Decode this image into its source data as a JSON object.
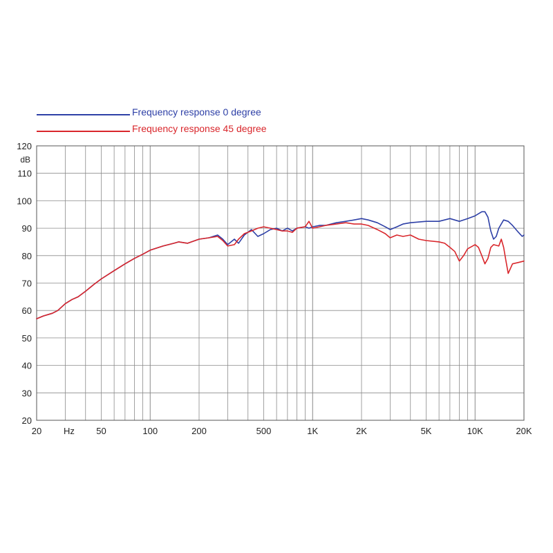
{
  "chart_data": {
    "type": "line",
    "x_scale": "log",
    "xlim": [
      20,
      20000
    ],
    "ylim": [
      20,
      120
    ],
    "y_unit": "dB",
    "x_unit": "Hz",
    "grid": true,
    "legend_position": "top-left",
    "y_ticks": [
      "120",
      "110",
      "100",
      "90",
      "80",
      "70",
      "60",
      "50",
      "40",
      "30",
      "20"
    ],
    "x_ticks": [
      {
        "value": 20,
        "label": "20"
      },
      {
        "value": 50,
        "label": "50"
      },
      {
        "value": 100,
        "label": "100"
      },
      {
        "value": 200,
        "label": "200"
      },
      {
        "value": 500,
        "label": "500"
      },
      {
        "value": 1000,
        "label": "1K"
      },
      {
        "value": 2000,
        "label": "2K"
      },
      {
        "value": 5000,
        "label": "5K"
      },
      {
        "value": 10000,
        "label": "10K"
      },
      {
        "value": 20000,
        "label": "20K"
      }
    ],
    "series": [
      {
        "name": "Frequency response 0 degree",
        "color": "#2d3fa6",
        "points": [
          [
            20,
            57
          ],
          [
            22,
            58
          ],
          [
            25,
            59
          ],
          [
            27,
            60
          ],
          [
            30,
            62.5
          ],
          [
            33,
            64
          ],
          [
            36,
            65
          ],
          [
            40,
            67
          ],
          [
            45,
            69.5
          ],
          [
            50,
            71.5
          ],
          [
            60,
            74.5
          ],
          [
            70,
            77
          ],
          [
            80,
            79
          ],
          [
            90,
            80.5
          ],
          [
            100,
            82
          ],
          [
            120,
            83.5
          ],
          [
            140,
            84.5
          ],
          [
            150,
            85
          ],
          [
            170,
            84.5
          ],
          [
            200,
            86
          ],
          [
            230,
            86.5
          ],
          [
            260,
            87.5
          ],
          [
            280,
            86
          ],
          [
            300,
            84
          ],
          [
            330,
            86
          ],
          [
            350,
            84.5
          ],
          [
            380,
            87.5
          ],
          [
            420,
            89.5
          ],
          [
            460,
            87
          ],
          [
            500,
            88
          ],
          [
            550,
            89.5
          ],
          [
            600,
            90
          ],
          [
            650,
            89
          ],
          [
            700,
            90
          ],
          [
            750,
            89
          ],
          [
            800,
            90
          ],
          [
            900,
            90.5
          ],
          [
            950,
            90
          ],
          [
            1000,
            90.5
          ],
          [
            1100,
            91
          ],
          [
            1200,
            91
          ],
          [
            1400,
            92
          ],
          [
            1600,
            92.5
          ],
          [
            1800,
            93
          ],
          [
            2000,
            93.5
          ],
          [
            2200,
            93
          ],
          [
            2500,
            92
          ],
          [
            2800,
            90.5
          ],
          [
            3000,
            89.5
          ],
          [
            3300,
            90.5
          ],
          [
            3600,
            91.5
          ],
          [
            4000,
            92
          ],
          [
            5000,
            92.5
          ],
          [
            6000,
            92.5
          ],
          [
            7000,
            93.5
          ],
          [
            8000,
            92.5
          ],
          [
            9000,
            93.5
          ],
          [
            10000,
            94.5
          ],
          [
            11000,
            96
          ],
          [
            11500,
            96
          ],
          [
            12000,
            94
          ],
          [
            12500,
            89
          ],
          [
            13000,
            86
          ],
          [
            13500,
            87
          ],
          [
            14000,
            90
          ],
          [
            15000,
            93
          ],
          [
            16000,
            92.5
          ],
          [
            17000,
            91
          ],
          [
            18500,
            88.5
          ],
          [
            19500,
            87
          ],
          [
            20000,
            87.5
          ]
        ]
      },
      {
        "name": "Frequency response 45 degree",
        "color": "#d9262b",
        "points": [
          [
            20,
            57
          ],
          [
            22,
            58
          ],
          [
            25,
            59
          ],
          [
            27,
            60
          ],
          [
            30,
            62.5
          ],
          [
            33,
            64
          ],
          [
            36,
            65
          ],
          [
            40,
            67
          ],
          [
            45,
            69.5
          ],
          [
            50,
            71.5
          ],
          [
            60,
            74.5
          ],
          [
            70,
            77
          ],
          [
            80,
            79
          ],
          [
            90,
            80.5
          ],
          [
            100,
            82
          ],
          [
            120,
            83.5
          ],
          [
            140,
            84.5
          ],
          [
            150,
            85
          ],
          [
            170,
            84.5
          ],
          [
            200,
            86
          ],
          [
            230,
            86.5
          ],
          [
            260,
            87
          ],
          [
            280,
            85.5
          ],
          [
            300,
            83.5
          ],
          [
            330,
            84
          ],
          [
            350,
            86
          ],
          [
            380,
            88
          ],
          [
            420,
            89
          ],
          [
            460,
            90
          ],
          [
            500,
            90.5
          ],
          [
            550,
            90
          ],
          [
            600,
            89.5
          ],
          [
            650,
            89
          ],
          [
            700,
            89
          ],
          [
            750,
            88.5
          ],
          [
            800,
            90
          ],
          [
            900,
            90.5
          ],
          [
            950,
            92.5
          ],
          [
            1000,
            90
          ],
          [
            1100,
            90.5
          ],
          [
            1200,
            91
          ],
          [
            1400,
            91.5
          ],
          [
            1600,
            92
          ],
          [
            1800,
            91.5
          ],
          [
            2000,
            91.5
          ],
          [
            2200,
            91
          ],
          [
            2500,
            89.5
          ],
          [
            2800,
            88
          ],
          [
            3000,
            86.5
          ],
          [
            3300,
            87.5
          ],
          [
            3600,
            87
          ],
          [
            4000,
            87.5
          ],
          [
            4500,
            86
          ],
          [
            5000,
            85.5
          ],
          [
            6000,
            85
          ],
          [
            6500,
            84.5
          ],
          [
            7000,
            83
          ],
          [
            7500,
            81.5
          ],
          [
            8000,
            78
          ],
          [
            8500,
            80
          ],
          [
            9000,
            82.5
          ],
          [
            10000,
            84
          ],
          [
            10500,
            83
          ],
          [
            11000,
            80
          ],
          [
            11500,
            77
          ],
          [
            12000,
            79
          ],
          [
            12500,
            83
          ],
          [
            13000,
            84
          ],
          [
            14000,
            83.5
          ],
          [
            14500,
            86
          ],
          [
            15000,
            83
          ],
          [
            15500,
            78
          ],
          [
            16000,
            73.5
          ],
          [
            17000,
            77
          ],
          [
            18500,
            77.5
          ],
          [
            20000,
            78
          ]
        ]
      }
    ]
  }
}
